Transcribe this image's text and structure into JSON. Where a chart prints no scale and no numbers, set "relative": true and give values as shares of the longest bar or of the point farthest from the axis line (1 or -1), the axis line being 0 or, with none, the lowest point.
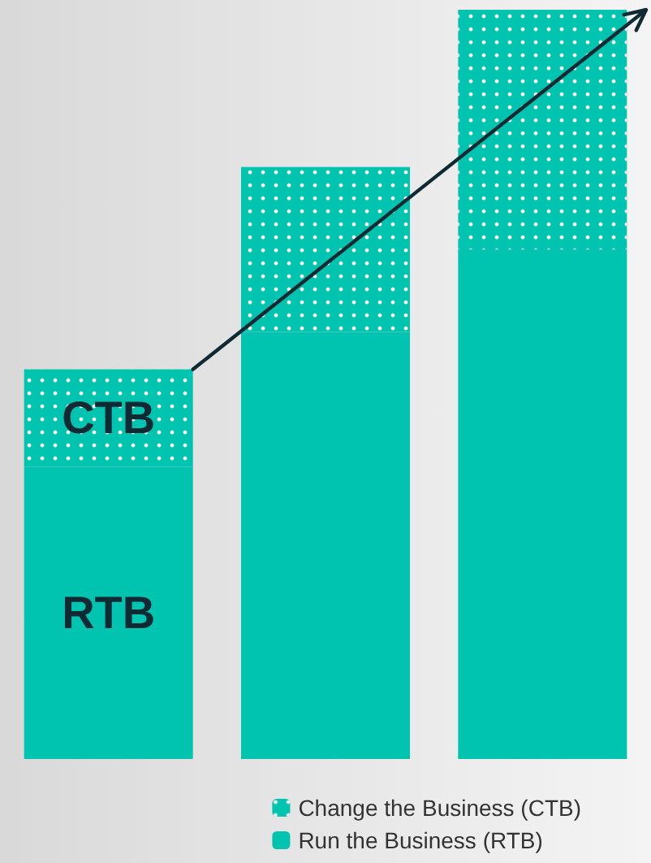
{
  "chart_data": {
    "type": "bar",
    "stacked": true,
    "relative": true,
    "categories": [
      null,
      null,
      null
    ],
    "series": [
      {
        "name": "Run the Business (RTB)",
        "color": "#00c4b0",
        "values": [
          0.39,
          0.57,
          0.68
        ]
      },
      {
        "name": "Change the Business (CTB)",
        "color": "#00c4b0",
        "values": [
          0.13,
          0.22,
          0.32
        ]
      }
    ],
    "annotations": [
      "CTB",
      "RTB"
    ],
    "legend": "bottom right"
  }
}
